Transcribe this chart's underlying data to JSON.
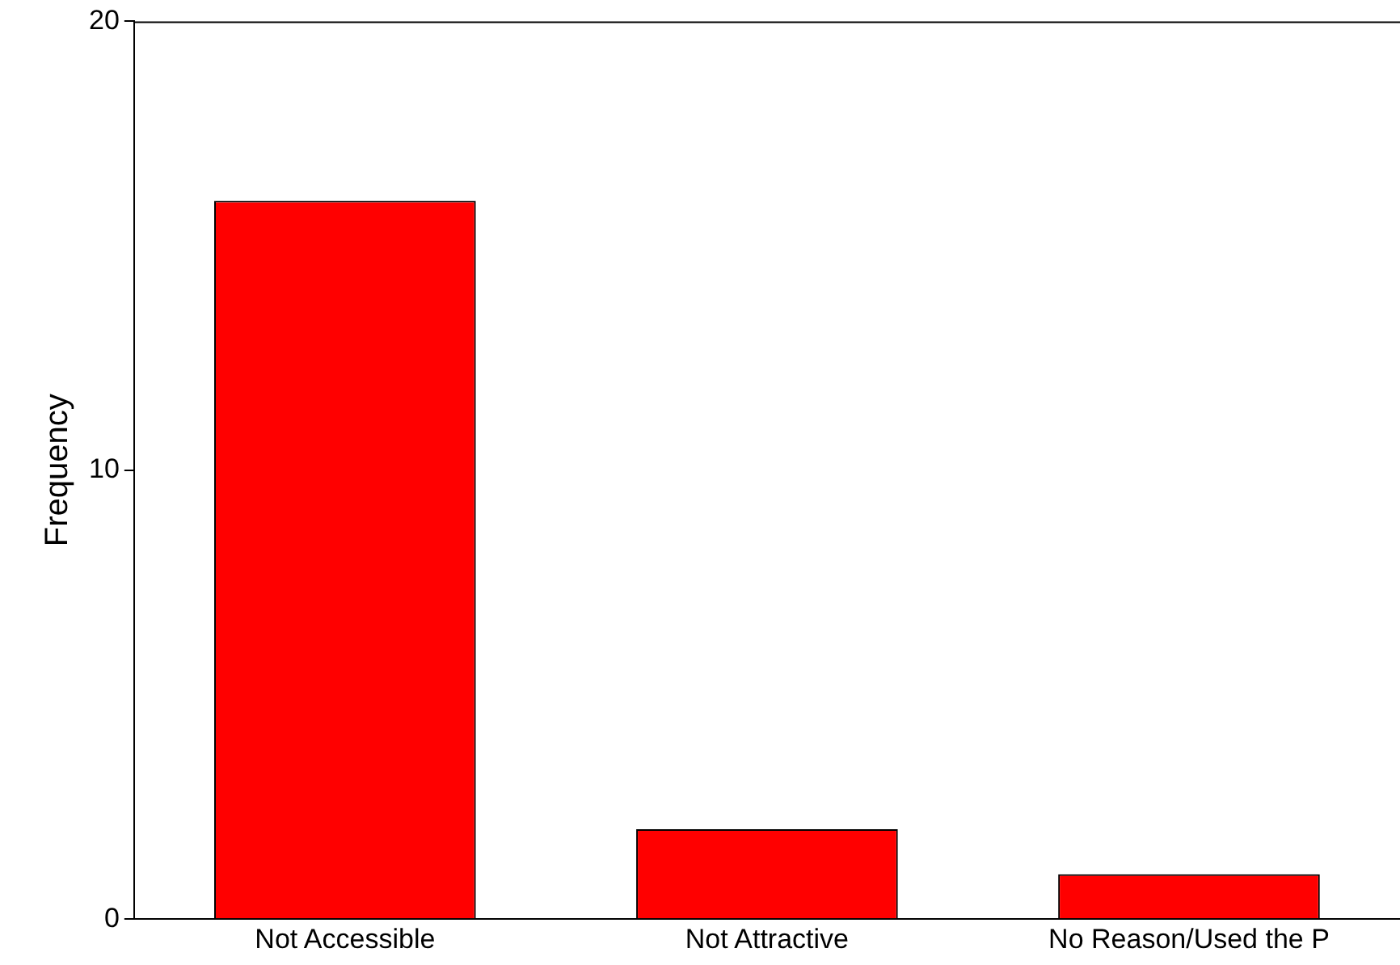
{
  "chart_data": {
    "type": "bar",
    "ylabel": "Frequency",
    "categories": [
      "Not Accessible",
      "Not Attractive",
      "No Reason/Used the P"
    ],
    "values": [
      16,
      2,
      1
    ],
    "color": "#ff0000",
    "ylim": [
      0,
      20
    ],
    "yticks": [
      0,
      10,
      20
    ],
    "grid": false,
    "legend": false
  }
}
